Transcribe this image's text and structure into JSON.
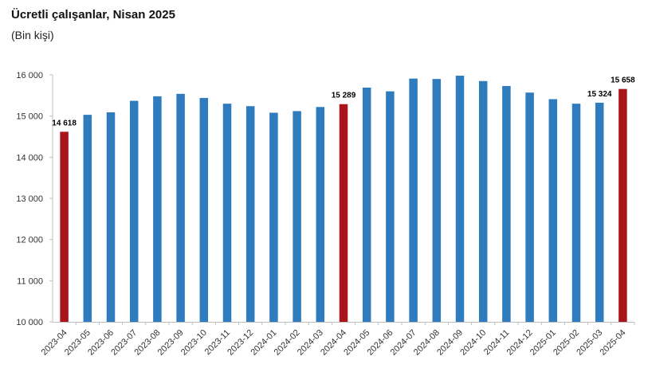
{
  "title": "Ücretli çalışanlar, Nisan 2025",
  "subtitle": "(Bin kişi)",
  "colors": {
    "normal": "#2e7bbd",
    "highlight": "#a8161c",
    "axis": "#bfbfbf"
  },
  "chart_data": {
    "type": "bar",
    "title": "Ücretli çalışanlar, Nisan 2025",
    "subtitle": "(Bin kişi)",
    "ylim": [
      10000,
      16000
    ],
    "yticks": [
      10000,
      11000,
      12000,
      13000,
      14000,
      15000,
      16000
    ],
    "ytick_labels": [
      "10 000",
      "11 000",
      "12 000",
      "13 000",
      "14 000",
      "15 000",
      "16 000"
    ],
    "grid": false,
    "categories": [
      "2023-04",
      "2023-05",
      "2023-06",
      "2023-07",
      "2023-08",
      "2023-09",
      "2023-10",
      "2023-11",
      "2023-12",
      "2024-01",
      "2024-02",
      "2024-03",
      "2024-04",
      "2024-05",
      "2024-06",
      "2024-07",
      "2024-08",
      "2024-09",
      "2024-10",
      "2024-11",
      "2024-12",
      "2025-01",
      "2025-02",
      "2025-03",
      "2025-04"
    ],
    "values": [
      14618,
      15030,
      15090,
      15370,
      15480,
      15540,
      15440,
      15300,
      15240,
      15080,
      15120,
      15220,
      15289,
      15690,
      15600,
      15910,
      15900,
      15980,
      15850,
      15730,
      15570,
      15410,
      15300,
      15324,
      15658
    ],
    "highlighted": [
      "2023-04",
      "2024-04",
      "2025-04"
    ],
    "data_labels": [
      {
        "category": "2023-04",
        "text": "14 618"
      },
      {
        "category": "2024-04",
        "text": "15 289"
      },
      {
        "category": "2025-03",
        "text": "15 324"
      },
      {
        "category": "2025-04",
        "text": "15 658"
      }
    ]
  }
}
